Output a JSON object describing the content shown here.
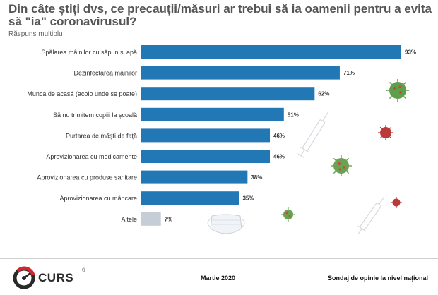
{
  "chart_data": {
    "type": "bar",
    "orientation": "horizontal",
    "title": "Din câte știți dvs, ce precauții/măsuri ar trebui să ia oamenii pentru a evita să \"ia\" coronavirusul?",
    "subtitle": "Răspuns multiplu",
    "categories": [
      "Spălarea mâinilor cu săpun și apă",
      "Dezinfectarea mâinilor",
      "Munca de acasă (acolo unde se poate)",
      "Să nu trimitem copiii la școală",
      "Purtarea de măști de față",
      "Aprovizionarea cu medicamente",
      "Aprovizionarea cu produse sanitare",
      "Aprovizionarea cu mâncare",
      "Altele"
    ],
    "values": [
      93,
      71,
      62,
      51,
      46,
      46,
      38,
      35,
      7
    ],
    "value_labels": [
      "93%",
      "71%",
      "62%",
      "51%",
      "46%",
      "46%",
      "38%",
      "35%",
      "7%"
    ],
    "unit": "%",
    "xlim": [
      0,
      100
    ],
    "grid": false,
    "legend": "none",
    "colors": {
      "main": "#2278b5",
      "other": "#c5ced6"
    }
  },
  "footer": {
    "brand": "CURS",
    "registered": "®",
    "date": "Martie 2020",
    "survey": "Sondaj de opinie la nivel național"
  }
}
